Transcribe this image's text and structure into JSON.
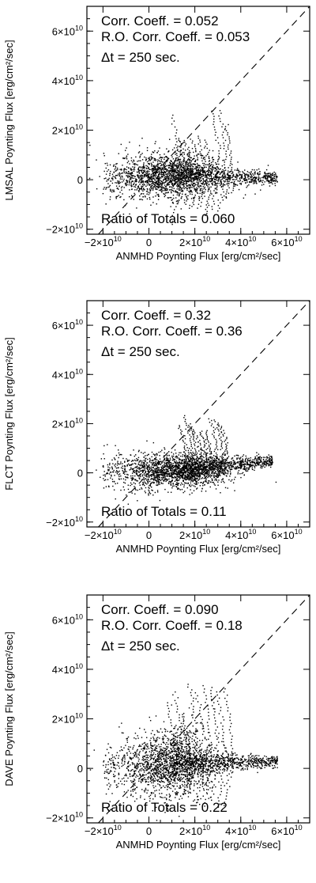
{
  "chart_data": [
    {
      "type": "scatter",
      "xlabel": "ANMHD Poynting Flux [erg/cm²/sec]",
      "ylabel": "LMSAL Poynting Flux [erg/cm²/sec]",
      "xlim": [
        -27000000000.0,
        70000000000.0
      ],
      "ylim": [
        -22000000000.0,
        70000000000.0
      ],
      "xticks": [
        -20000000000.0,
        0,
        20000000000.0,
        40000000000.0,
        60000000000.0
      ],
      "yticks": [
        -20000000000.0,
        0,
        20000000000.0,
        40000000000.0,
        60000000000.0
      ],
      "tick_labels": [
        "−2×10¹⁰",
        "0",
        "2×10¹⁰",
        "4×10¹⁰",
        "6×10¹⁰"
      ],
      "annotations": {
        "corr": "Corr. Coeff. = 0.052",
        "ro_corr": "R.O. Corr. Coeff. = 0.053",
        "dt": "Δt =  250 sec.",
        "ratio": "Ratio of Totals = 0.060"
      },
      "diagonal": "y = x, dashed",
      "scatter_features": {
        "core_center": [
          9000000000.0,
          2000000000.0
        ],
        "core_spread": [
          11000000000.0,
          4500000000.0
        ],
        "fan_y_range": [
          -20000000000.0,
          30000000000.0
        ],
        "tail_x_max": 56000000000.0,
        "tail_y": 500000000.0,
        "fan_x_range": [
          10000000000.0,
          33000000000.0
        ]
      }
    },
    {
      "type": "scatter",
      "xlabel": "ANMHD Poynting Flux [erg/cm²/sec]",
      "ylabel": "FLCT Poynting Flux [erg/cm²/sec]",
      "xlim": [
        -27000000000.0,
        70000000000.0
      ],
      "ylim": [
        -22000000000.0,
        70000000000.0
      ],
      "xticks": [
        -20000000000.0,
        0,
        20000000000.0,
        40000000000.0,
        60000000000.0
      ],
      "yticks": [
        -20000000000.0,
        0,
        20000000000.0,
        40000000000.0,
        60000000000.0
      ],
      "tick_labels": [
        "−2×10¹⁰",
        "0",
        "2×10¹⁰",
        "4×10¹⁰",
        "6×10¹⁰"
      ],
      "annotations": {
        "corr": "Corr. Coeff. = 0.32",
        "ro_corr": "R.O. Corr. Coeff. = 0.36",
        "dt": "Δt =  250 sec.",
        "ratio": "Ratio of Totals = 0.11"
      },
      "diagonal": "y = x, dashed",
      "scatter_features": {
        "core_center": [
          12000000000.0,
          1000000000.0
        ],
        "core_spread": [
          12000000000.0,
          3500000000.0
        ],
        "fan_y_range": [
          -6000000000.0,
          25000000000.0
        ],
        "tail_x_max": 54000000000.0,
        "tail_y": 5000000000.0,
        "fan_x_range": [
          13000000000.0,
          31000000000.0
        ]
      }
    },
    {
      "type": "scatter",
      "xlabel": "ANMHD Poynting Flux [erg/cm²/sec]",
      "ylabel": "DAVE Poynting Flux [erg/cm²/sec]",
      "xlim": [
        -27000000000.0,
        70000000000.0
      ],
      "ylim": [
        -22000000000.0,
        70000000000.0
      ],
      "xticks": [
        -20000000000.0,
        0,
        20000000000.0,
        40000000000.0,
        60000000000.0
      ],
      "yticks": [
        -20000000000.0,
        0,
        20000000000.0,
        40000000000.0,
        60000000000.0
      ],
      "tick_labels": [
        "−2×10¹⁰",
        "0",
        "2×10¹⁰",
        "4×10¹⁰",
        "6×10¹⁰"
      ],
      "annotations": {
        "corr": "Corr. Coeff. = 0.090",
        "ro_corr": "R.O. Corr. Coeff. = 0.18",
        "dt": "Δt =  250 sec.",
        "ratio": "Ratio of Totals = 0.22"
      },
      "diagonal": "y = x, dashed",
      "scatter_features": {
        "core_center": [
          10000000000.0,
          2000000000.0
        ],
        "core_spread": [
          10000000000.0,
          7000000000.0
        ],
        "fan_y_range": [
          -18000000000.0,
          39000000000.0
        ],
        "tail_x_max": 56000000000.0,
        "tail_y": 2500000000.0,
        "fan_x_range": [
          8000000000.0,
          33000000000.0
        ]
      }
    }
  ]
}
